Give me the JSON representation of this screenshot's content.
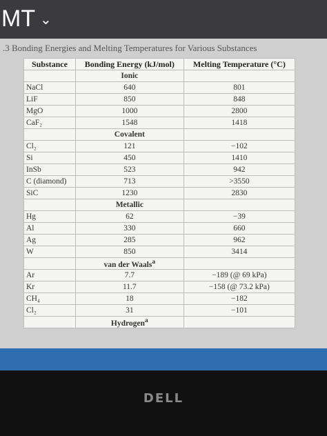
{
  "header": {
    "app_label": "MT",
    "menu_icon": "⌄"
  },
  "table": {
    "caption": ".3 Bonding Energies and Melting Temperatures for Various Substances",
    "columns": [
      "Substance",
      "Bonding Energy (kJ/mol)",
      "Melting Temperature (°C)"
    ],
    "sections": [
      {
        "name": "Ionic",
        "rows": [
          [
            "NaCl",
            "640",
            "801"
          ],
          [
            "LiF",
            "850",
            "848"
          ],
          [
            "MgO",
            "1000",
            "2800"
          ],
          [
            "CaF₂",
            "1548",
            "1418"
          ]
        ]
      },
      {
        "name": "Covalent",
        "rows": [
          [
            "Cl₂",
            "121",
            "−102"
          ],
          [
            "Si",
            "450",
            "1410"
          ],
          [
            "InSb",
            "523",
            "942"
          ],
          [
            "C (diamond)",
            "713",
            ">3550"
          ],
          [
            "SiC",
            "1230",
            "2830"
          ]
        ]
      },
      {
        "name": "Metallic",
        "rows": [
          [
            "Hg",
            "62",
            "−39"
          ],
          [
            "Al",
            "330",
            "660"
          ],
          [
            "Ag",
            "285",
            "962"
          ],
          [
            "W",
            "850",
            "3414"
          ]
        ]
      },
      {
        "name": "van der Waals",
        "note": "a",
        "rows": [
          [
            "Ar",
            "7.7",
            "−189 (@ 69 kPa)"
          ],
          [
            "Kr",
            "11.7",
            "−158 (@ 73.2 kPa)"
          ],
          [
            "CH₄",
            "18",
            "−182"
          ],
          [
            "Cl₂",
            "31",
            "−101"
          ]
        ]
      },
      {
        "name": "Hydrogen",
        "note": "a",
        "rows": []
      }
    ]
  },
  "footer": {
    "brand": "DELL"
  }
}
